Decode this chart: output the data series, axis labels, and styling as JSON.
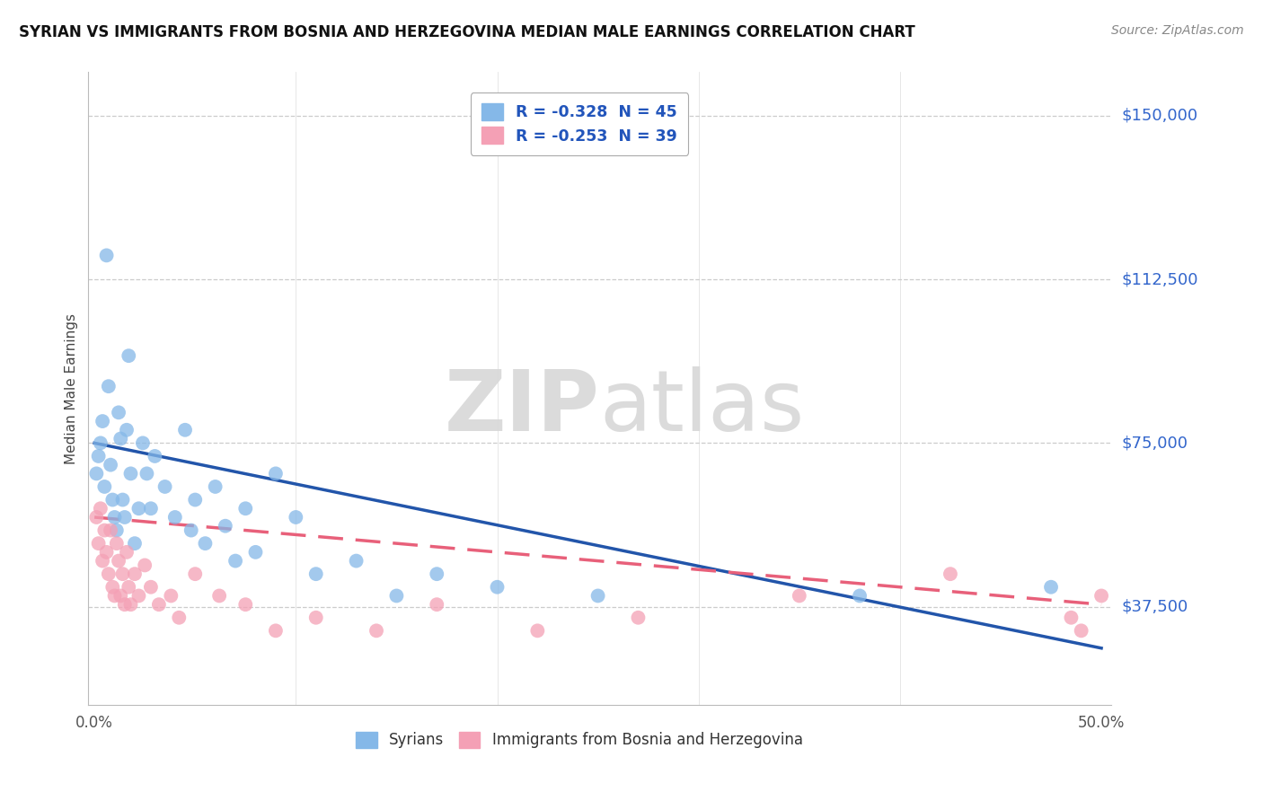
{
  "title": "SYRIAN VS IMMIGRANTS FROM BOSNIA AND HERZEGOVINA MEDIAN MALE EARNINGS CORRELATION CHART",
  "source": "Source: ZipAtlas.com",
  "ylabel": "Median Male Earnings",
  "ytick_labels": [
    "$37,500",
    "$75,000",
    "$112,500",
    "$150,000"
  ],
  "ytick_values": [
    37500,
    75000,
    112500,
    150000
  ],
  "ymin": 15000,
  "ymax": 160000,
  "xmin": -0.003,
  "xmax": 0.505,
  "watermark_zip": "ZIP",
  "watermark_atlas": "atlas",
  "legend_label_syrians": "Syrians",
  "legend_label_bosnia": "Immigrants from Bosnia and Herzegovina",
  "syrian_color": "#85b8e8",
  "bosnia_color": "#f4a0b5",
  "syrian_line_color": "#2255aa",
  "bosnia_line_color": "#e8607a",
  "syrian_R": -0.328,
  "syrian_N": 45,
  "bosnia_R": -0.253,
  "bosnia_N": 39,
  "syrian_x": [
    0.001,
    0.002,
    0.003,
    0.004,
    0.005,
    0.006,
    0.007,
    0.008,
    0.009,
    0.01,
    0.011,
    0.012,
    0.013,
    0.014,
    0.015,
    0.016,
    0.017,
    0.018,
    0.02,
    0.022,
    0.024,
    0.026,
    0.028,
    0.03,
    0.035,
    0.04,
    0.045,
    0.048,
    0.05,
    0.055,
    0.06,
    0.065,
    0.07,
    0.075,
    0.08,
    0.09,
    0.1,
    0.11,
    0.13,
    0.15,
    0.17,
    0.2,
    0.25,
    0.38,
    0.475
  ],
  "syrian_y": [
    68000,
    72000,
    75000,
    80000,
    65000,
    118000,
    88000,
    70000,
    62000,
    58000,
    55000,
    82000,
    76000,
    62000,
    58000,
    78000,
    95000,
    68000,
    52000,
    60000,
    75000,
    68000,
    60000,
    72000,
    65000,
    58000,
    78000,
    55000,
    62000,
    52000,
    65000,
    56000,
    48000,
    60000,
    50000,
    68000,
    58000,
    45000,
    48000,
    40000,
    45000,
    42000,
    40000,
    40000,
    42000
  ],
  "bosnia_x": [
    0.001,
    0.002,
    0.003,
    0.004,
    0.005,
    0.006,
    0.007,
    0.008,
    0.009,
    0.01,
    0.011,
    0.012,
    0.013,
    0.014,
    0.015,
    0.016,
    0.017,
    0.018,
    0.02,
    0.022,
    0.025,
    0.028,
    0.032,
    0.038,
    0.042,
    0.05,
    0.062,
    0.075,
    0.09,
    0.11,
    0.14,
    0.17,
    0.22,
    0.27,
    0.35,
    0.425,
    0.485,
    0.49,
    0.5
  ],
  "bosnia_y": [
    58000,
    52000,
    60000,
    48000,
    55000,
    50000,
    45000,
    55000,
    42000,
    40000,
    52000,
    48000,
    40000,
    45000,
    38000,
    50000,
    42000,
    38000,
    45000,
    40000,
    47000,
    42000,
    38000,
    40000,
    35000,
    45000,
    40000,
    38000,
    32000,
    35000,
    32000,
    38000,
    32000,
    35000,
    40000,
    45000,
    35000,
    32000,
    40000
  ]
}
